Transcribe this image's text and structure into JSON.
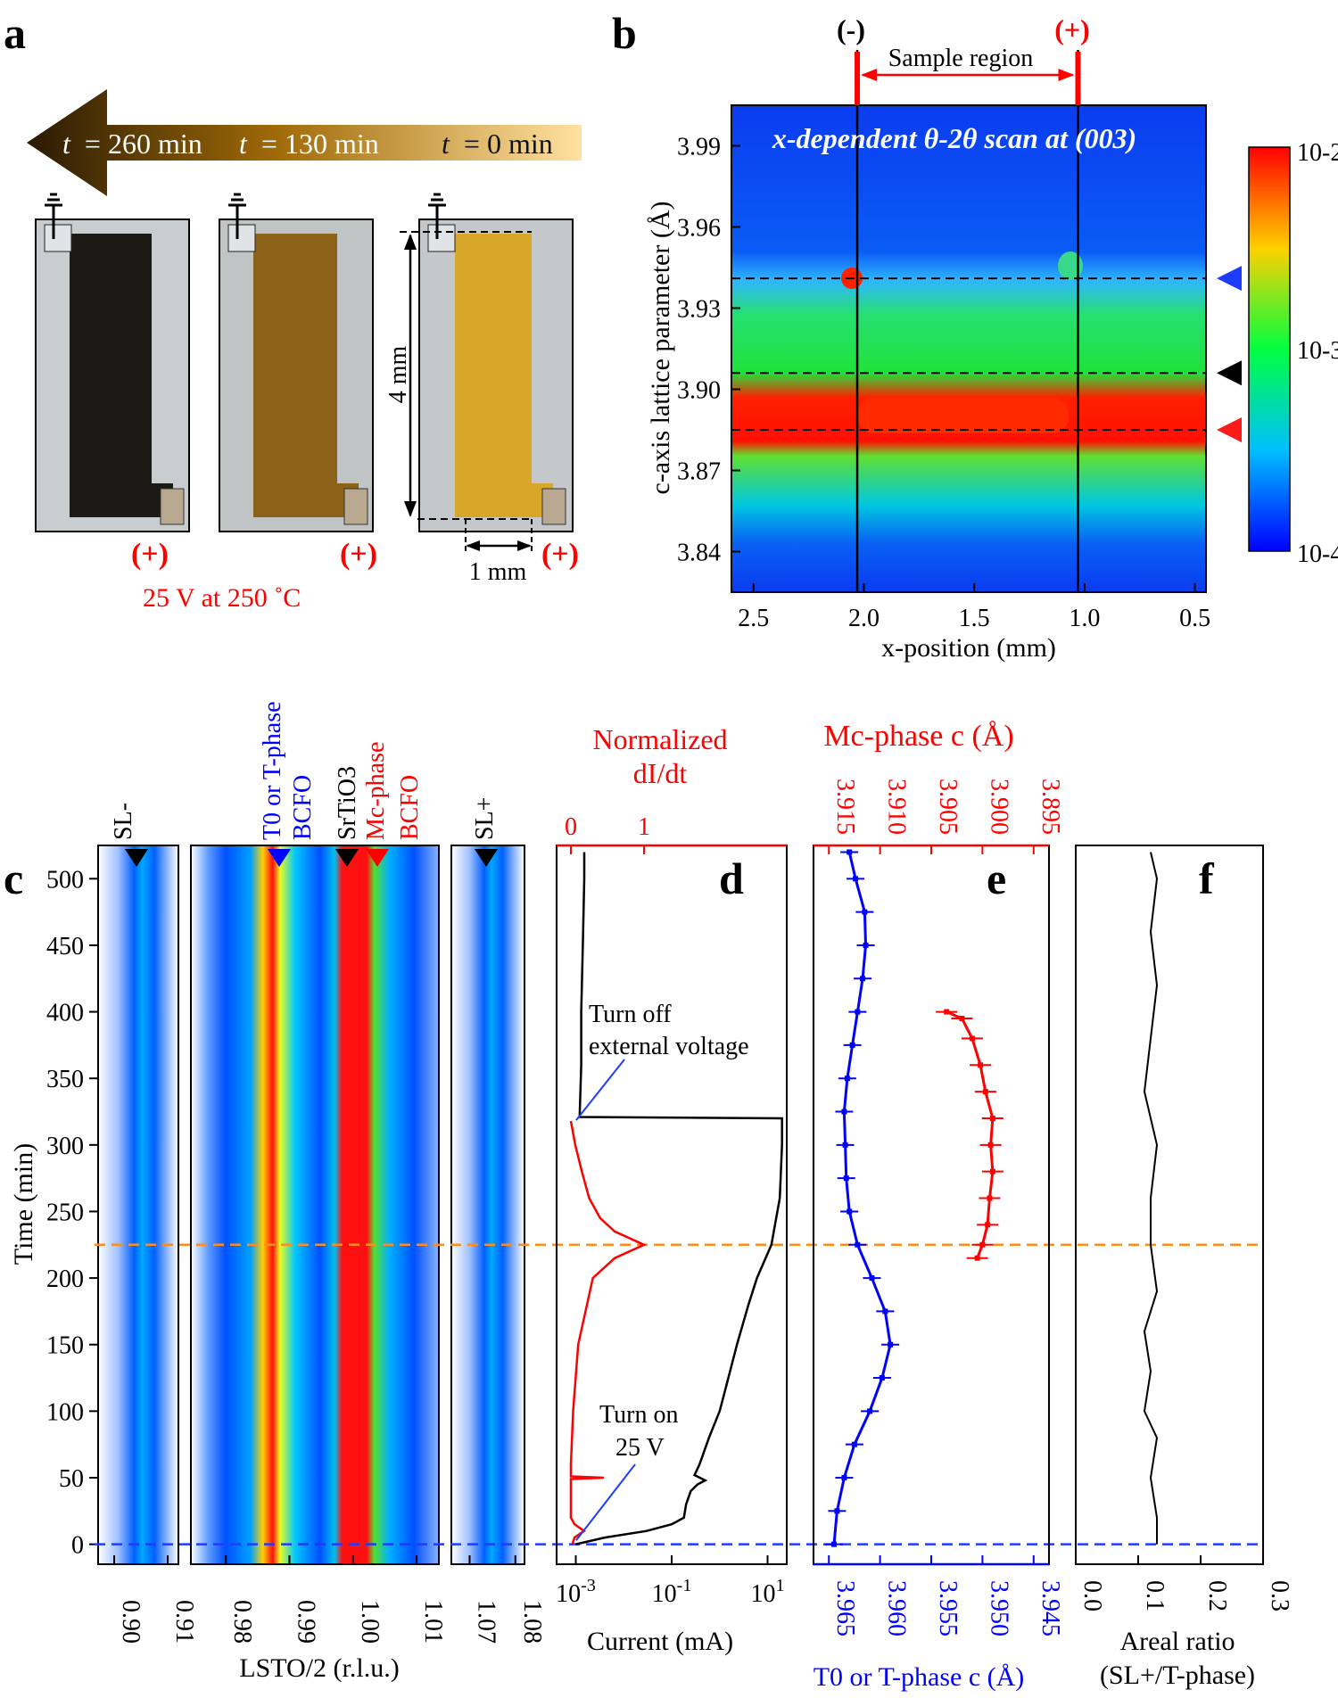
{
  "panels": {
    "a": "a",
    "b": "b",
    "c": "c",
    "d": "d",
    "e": "e",
    "f": "f"
  },
  "panel_a": {
    "times": [
      "t = 260 min",
      "t = 130 min",
      "t = 0 min"
    ],
    "t_prefix": "t",
    "t_values": [
      "= 260 min",
      "= 130 min",
      "= 0 min"
    ],
    "plus_label": "(+)",
    "scale_vertical": "4 mm",
    "scale_horizontal": "1 mm",
    "condition": "25 V at 250 ˚C"
  },
  "panel_b": {
    "minus_electrode": "(-)",
    "plus_electrode": "(+)",
    "sample_region": "Sample region",
    "title": "x-dependent θ-2θ scan at (003)",
    "ylabel": "c-axis lattice parameter (Å)",
    "xlabel": "x-position (mm)",
    "colorbar_max": "10-2",
    "colorbar_mid": "10-3",
    "colorbar_min": "10-4",
    "colors": {
      "blue_marker": "#1e3cff",
      "black_marker": "#000000",
      "red_marker": "#ff1a1a"
    }
  },
  "panel_c": {
    "ylabel": "Time (min)",
    "xlabel": "LSTO/2 (r.l.u.)",
    "markers": {
      "sl_minus": "SL-",
      "t_phase_line1": "T0 or T-phase",
      "t_phase_line2": "BCFO",
      "srtio3": "SrTiO3",
      "mc_phase_line1": "Mc-phase",
      "mc_phase_line2": "BCFO",
      "sl_plus": "SL+"
    }
  },
  "panel_d": {
    "top_label_line1": "Normalized",
    "top_label_line2": "dI/dt",
    "xlabel": "Current (mA)",
    "annotation_off_line1": "Turn off",
    "annotation_off_line2": "external voltage",
    "annotation_on_line1": "Turn on",
    "annotation_on_line2": "25 V"
  },
  "panel_e": {
    "top_label": "Mc-phase c (Å)",
    "xlabel": "T0 or T-phase c (Å)"
  },
  "panel_f": {
    "xlabel_line1": "Areal ratio",
    "xlabel_line2": "(SL+/T-phase)"
  },
  "chart_data": [
    {
      "type": "heatmap",
      "panel": "b",
      "title": "x-dependent θ-2θ scan at (003)",
      "xlabel": "x-position (mm)",
      "ylabel": "c-axis lattice parameter (Å)",
      "xlim": [
        2.6,
        0.45
      ],
      "ylim": [
        3.825,
        4.005
      ],
      "x_ticks": [
        "2.5",
        "2.0",
        "1.5",
        "1.0",
        "0.5"
      ],
      "y_ticks": [
        "3.84",
        "3.87",
        "3.90",
        "3.93",
        "3.96",
        "3.99"
      ],
      "electrodes_x": [
        2.03,
        1.03
      ],
      "reference_lines_c": [
        3.941,
        3.906,
        3.885
      ],
      "colorbar": [
        "10-4",
        "10-3",
        "10-2"
      ]
    },
    {
      "type": "heatmap",
      "panel": "c",
      "ylabel": "Time (min)",
      "xlabel": "LSTO/2 (r.l.u.)",
      "ylim": [
        -15,
        525
      ],
      "y_ticks": [
        "0",
        "50",
        "100",
        "150",
        "200",
        "250",
        "300",
        "350",
        "400",
        "450",
        "500"
      ],
      "sub_panels": [
        {
          "name": "SL-",
          "x_ticks": [
            "0.90",
            "0.91"
          ]
        },
        {
          "name": "main",
          "x_ticks": [
            "0.98",
            "0.99",
            "1.00",
            "1.01"
          ]
        },
        {
          "name": "SL+",
          "x_ticks": [
            "1.07",
            "1.08"
          ]
        }
      ],
      "reference_times": [
        225,
        0
      ]
    },
    {
      "type": "line",
      "panel": "d",
      "xlabel": "Current (mA)",
      "x_scale": "log",
      "x_ticks": [
        "10-3",
        "10-1",
        "101"
      ],
      "top_axis_label": "Normalized dI/dt",
      "top_ticks": [
        "0",
        "1"
      ],
      "series": [
        {
          "name": "Current",
          "color": "#000000",
          "t": [
            0,
            5,
            10,
            15,
            20,
            30,
            40,
            45,
            48,
            52,
            60,
            80,
            100,
            120,
            150,
            180,
            200,
            225,
            260,
            300,
            320,
            321,
            360,
            400,
            450,
            500,
            520
          ],
          "value": [
            0.001,
            0.004,
            0.03,
            0.1,
            0.18,
            0.2,
            0.25,
            0.35,
            0.5,
            0.3,
            0.38,
            0.6,
            1.0,
            1.4,
            2.3,
            4.0,
            6.0,
            12,
            18,
            20,
            20,
            0.0012,
            0.0013,
            0.0013,
            0.0014,
            0.0015,
            0.0015
          ]
        },
        {
          "name": "Normalized dI/dt",
          "color": "#ff0000",
          "t": [
            0,
            5,
            10,
            15,
            20,
            40,
            49,
            50,
            51,
            60,
            100,
            150,
            200,
            215,
            225,
            235,
            245,
            260,
            280,
            300,
            318
          ],
          "value": [
            0.02,
            0.05,
            0.18,
            0.05,
            0.0,
            0.0,
            0.0,
            0.45,
            0.0,
            0.0,
            0.03,
            0.1,
            0.3,
            0.6,
            1.0,
            0.6,
            0.4,
            0.25,
            0.15,
            0.06,
            0.0
          ]
        }
      ]
    },
    {
      "type": "scatter",
      "panel": "e",
      "xlabel": "T0 or T-phase c (Å)",
      "x_ticks": [
        "3.965",
        "3.960",
        "3.955",
        "3.950",
        "3.945"
      ],
      "top_axis_label": "Mc-phase c (Å)",
      "top_ticks": [
        "3.915",
        "3.910",
        "3.905",
        "3.900",
        "3.895"
      ],
      "series": [
        {
          "name": "T0 or T-phase c",
          "color": "#0000ff",
          "t": [
            0,
            25,
            50,
            75,
            100,
            125,
            150,
            175,
            200,
            225,
            250,
            275,
            300,
            325,
            350,
            375,
            400,
            425,
            450,
            475,
            500,
            520
          ],
          "value": [
            3.9645,
            3.9642,
            3.9635,
            3.9625,
            3.961,
            3.9598,
            3.959,
            3.9595,
            3.9608,
            3.9622,
            3.963,
            3.9633,
            3.9634,
            3.9635,
            3.9632,
            3.9627,
            3.9622,
            3.9617,
            3.9614,
            3.9615,
            3.9624,
            3.963
          ]
        },
        {
          "name": "Mc-phase c",
          "color": "#ff0000",
          "t": [
            215,
            225,
            240,
            260,
            280,
            300,
            320,
            340,
            360,
            380,
            395,
            400
          ],
          "value": [
            3.9005,
            3.9,
            3.8995,
            3.8993,
            3.899,
            3.8992,
            3.899,
            3.8997,
            3.9002,
            3.901,
            3.902,
            3.9035
          ]
        }
      ]
    },
    {
      "type": "line",
      "panel": "f",
      "xlabel": "Areal ratio (SL+/T-phase)",
      "x_ticks": [
        "0.0",
        "0.1",
        "0.2",
        "0.3"
      ],
      "series": [
        {
          "name": "Areal ratio",
          "color": "#000000",
          "t": [
            0,
            20,
            50,
            80,
            100,
            130,
            160,
            190,
            225,
            260,
            300,
            340,
            380,
            420,
            460,
            500,
            520
          ],
          "value": [
            0.13,
            0.13,
            0.12,
            0.13,
            0.11,
            0.12,
            0.11,
            0.13,
            0.12,
            0.12,
            0.13,
            0.11,
            0.12,
            0.13,
            0.12,
            0.13,
            0.12
          ]
        }
      ]
    }
  ]
}
